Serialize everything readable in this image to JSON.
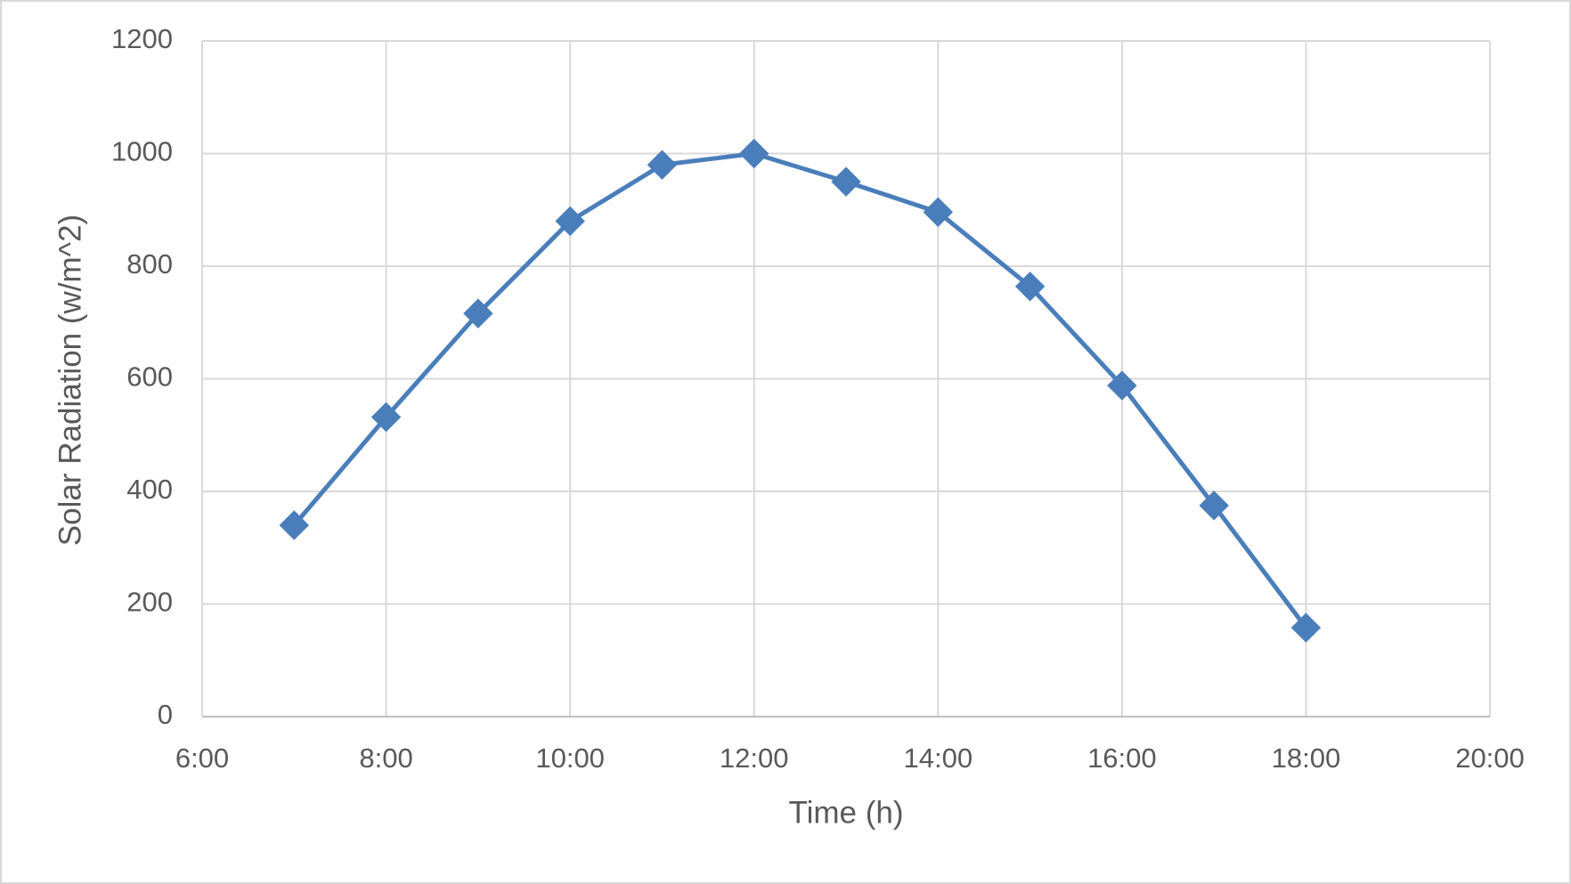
{
  "chart_data": {
    "type": "line",
    "x_label": "Time (h)",
    "y_label": "Solar Radiation (w/m^2)",
    "x": [
      7,
      8,
      9,
      10,
      11,
      12,
      13,
      14,
      15,
      16,
      17,
      18
    ],
    "series": [
      {
        "name": "Solar Radiation",
        "color": "#4a7ebb",
        "values": [
          340,
          532,
          716,
          880,
          980,
          1000,
          950,
          896,
          764,
          588,
          375,
          158
        ]
      }
    ],
    "xlim": [
      6,
      20
    ],
    "xticks": [
      {
        "value": 6,
        "label": "6:00"
      },
      {
        "value": 8,
        "label": "8:00"
      },
      {
        "value": 10,
        "label": "10:00"
      },
      {
        "value": 12,
        "label": "12:00"
      },
      {
        "value": 14,
        "label": "14:00"
      },
      {
        "value": 16,
        "label": "16:00"
      },
      {
        "value": 18,
        "label": "18:00"
      },
      {
        "value": 20,
        "label": "20:00"
      }
    ],
    "ylim": [
      0,
      1200
    ],
    "yticks": [
      0,
      200,
      400,
      600,
      800,
      1000,
      1200
    ],
    "grid": true,
    "legend": false
  }
}
